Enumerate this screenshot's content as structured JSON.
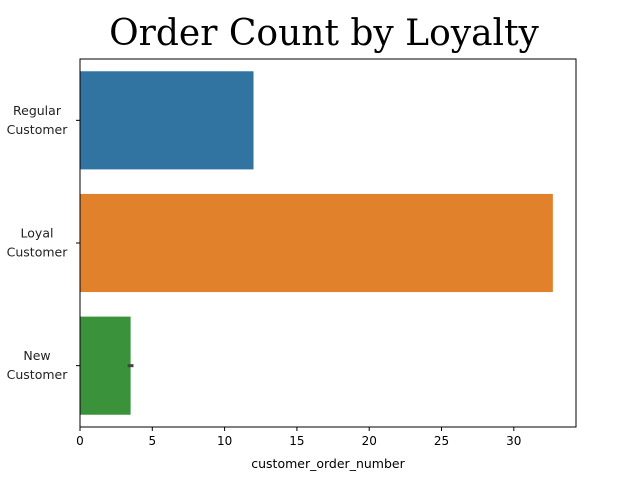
{
  "chart_data": {
    "type": "bar",
    "orientation": "horizontal",
    "title": "Order Count by Loyalty",
    "xlabel": "customer_order_number",
    "ylabel": "",
    "xlim": [
      0,
      34.3
    ],
    "xticks": [
      0,
      5,
      10,
      15,
      20,
      25,
      30
    ],
    "categories": [
      [
        "Regular",
        "Customer"
      ],
      [
        "Loyal",
        "Customer"
      ],
      [
        "New",
        "Customer"
      ]
    ],
    "values": [
      12.0,
      32.7,
      3.5
    ],
    "error": [
      null,
      null,
      0.2
    ],
    "colors": [
      "#3274a1",
      "#e1812c",
      "#3a923a"
    ],
    "grid": false
  }
}
